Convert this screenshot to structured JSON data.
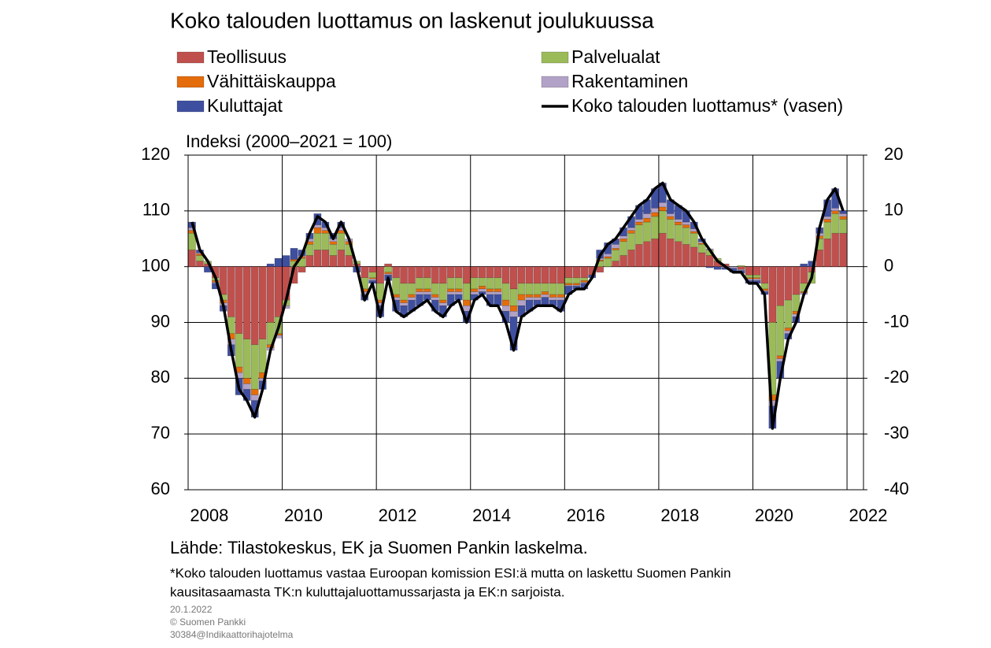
{
  "chart_data": {
    "type": "bar",
    "title": "Koko talouden luottamus on laskenut joulukuussa",
    "y_label": "Indeksi (2000–2021 = 100)",
    "source": "Lähde: Tilastokeskus, EK ja Suomen Pankin laskelma.",
    "footnote": [
      "*Koko talouden luottamus vastaa Euroopan komission ESI:ä mutta on laskettu Suomen Pankin",
      "kausitasaamasta TK:n kuluttajaluottamussarjasta ja EK:n sarjoista."
    ],
    "notes": [
      "20.1.2022",
      "© Suomen Pankki",
      "30384@Indikaattorihajotelma"
    ],
    "xlim": [
      2008,
      2022.35
    ],
    "xticks": [
      2008,
      2010,
      2012,
      2014,
      2016,
      2018,
      2020,
      2022
    ],
    "ylim": [
      60,
      120
    ],
    "yticks": [
      60,
      70,
      80,
      90,
      100,
      110,
      120
    ],
    "y2lim": [
      -40,
      20
    ],
    "y2ticks": [
      -40,
      -30,
      -20,
      -10,
      0,
      10,
      20
    ],
    "grid": true,
    "x": [
      2008.083,
      2008.25,
      2008.417,
      2008.583,
      2008.75,
      2008.917,
      2009.083,
      2009.25,
      2009.417,
      2009.583,
      2009.75,
      2009.917,
      2010.083,
      2010.25,
      2010.417,
      2010.583,
      2010.75,
      2010.917,
      2011.083,
      2011.25,
      2011.417,
      2011.583,
      2011.75,
      2011.917,
      2012.083,
      2012.25,
      2012.417,
      2012.583,
      2012.75,
      2012.917,
      2013.083,
      2013.25,
      2013.417,
      2013.583,
      2013.75,
      2013.917,
      2014.083,
      2014.25,
      2014.417,
      2014.583,
      2014.75,
      2014.917,
      2015.083,
      2015.25,
      2015.417,
      2015.583,
      2015.75,
      2015.917,
      2016.083,
      2016.25,
      2016.417,
      2016.583,
      2016.75,
      2016.917,
      2017.083,
      2017.25,
      2017.417,
      2017.583,
      2017.75,
      2017.917,
      2018.083,
      2018.25,
      2018.417,
      2018.583,
      2018.75,
      2018.917,
      2019.083,
      2019.25,
      2019.417,
      2019.583,
      2019.75,
      2019.917,
      2020.083,
      2020.25,
      2020.417,
      2020.583,
      2020.75,
      2020.917,
      2021.083,
      2021.25,
      2021.417,
      2021.583,
      2021.75,
      2021.917
    ],
    "series": [
      {
        "name": "Teollisuus",
        "type": "bar",
        "axis": "y2",
        "color": "#c0504d",
        "values": [
          3,
          1,
          0.5,
          -2,
          -5,
          -9,
          -12,
          -13,
          -14,
          -13,
          -10,
          -9,
          -6,
          -3,
          -1,
          2,
          3,
          3,
          2,
          3,
          2,
          0.5,
          -2,
          -1,
          -3,
          0.5,
          -2,
          -3,
          -3,
          -2,
          -2,
          -3,
          -3,
          -2,
          -2,
          -3,
          -2,
          -2,
          -2,
          -2,
          -3,
          -4,
          -3,
          -3,
          -3,
          -3,
          -3,
          -3,
          -2,
          -2,
          -2,
          -1.5,
          -1,
          0,
          1,
          2,
          3,
          4,
          4.5,
          5,
          6,
          5,
          4.5,
          4,
          3.5,
          2.5,
          2,
          1,
          0.5,
          0,
          -0.5,
          -1.5,
          -1.5,
          -3,
          -10,
          -7,
          -6,
          -5,
          -3,
          -1,
          3,
          5,
          6,
          6
        ]
      },
      {
        "name": "Palvelualat",
        "type": "bar",
        "axis": "y2",
        "color": "#9bbb59",
        "values": [
          3,
          1,
          0.5,
          -0.5,
          -1,
          -3,
          -6,
          -7,
          -8,
          -6,
          -4,
          -3,
          -1,
          1,
          1.5,
          2,
          3,
          3,
          2,
          3,
          2,
          0.5,
          -2,
          -1,
          -3,
          -1,
          -3,
          -3,
          -2,
          -2,
          -2,
          -2,
          -3,
          -2,
          -2,
          -3,
          -2,
          -1.5,
          -2,
          -2,
          -3,
          -3,
          -2,
          -2,
          -2,
          -1.5,
          -2,
          -2,
          -1,
          -1,
          -0.5,
          0,
          1,
          1.5,
          2,
          2.5,
          3,
          3.5,
          3.5,
          4,
          4,
          3.5,
          3,
          3,
          2.5,
          1.5,
          1,
          0.5,
          0,
          0,
          0.2,
          -0.5,
          -0.5,
          -1,
          -13,
          -9,
          -5,
          -3,
          -1.5,
          -2,
          2,
          3,
          3.5,
          2.5
        ]
      },
      {
        "name": "Vähittäiskauppa",
        "type": "bar",
        "axis": "y2",
        "color": "#e46c0a",
        "values": [
          0.5,
          0.3,
          0,
          -0.3,
          -0.5,
          -1,
          -1,
          -1,
          -1,
          -1,
          -0.5,
          -0.3,
          0,
          0.3,
          0.3,
          0.5,
          1,
          0.5,
          0.5,
          0.5,
          0.5,
          0,
          -0.5,
          -0.2,
          -0.5,
          -0.3,
          -0.5,
          -0.5,
          -0.5,
          -0.5,
          -0.5,
          -0.5,
          -0.5,
          -0.5,
          -0.5,
          -1,
          -0.5,
          -0.5,
          -0.5,
          -0.5,
          -1,
          -1,
          -1,
          -0.5,
          -0.5,
          -0.5,
          -0.5,
          -0.5,
          -0.3,
          -0.3,
          -0.3,
          0,
          0.2,
          0.3,
          0.3,
          0.5,
          0.5,
          0.5,
          0.7,
          0.7,
          0.7,
          0.5,
          0.5,
          0.5,
          0.3,
          0.2,
          0,
          0,
          0,
          0,
          0,
          -0.2,
          -0.2,
          -0.3,
          -1,
          -0.5,
          -0.5,
          -0.5,
          -0.2,
          0,
          0.5,
          0.5,
          0.5,
          0.5
        ]
      },
      {
        "name": "Rakentaminen",
        "type": "bar",
        "axis": "y2",
        "color": "#b3a2c7",
        "values": [
          0.5,
          0.2,
          0,
          -0.2,
          -0.5,
          -1,
          -1,
          -1,
          -1,
          -0.5,
          -0.5,
          -0.5,
          -0.5,
          0,
          0.2,
          0.5,
          0.5,
          0.5,
          0.5,
          0.5,
          0.5,
          0,
          -0.5,
          -0.3,
          -0.5,
          -0.2,
          -0.5,
          -0.5,
          -0.5,
          -0.5,
          -0.5,
          -0.5,
          -0.5,
          -0.5,
          -0.5,
          -1,
          -0.5,
          -0.5,
          -0.5,
          -0.5,
          -1,
          -1,
          -1,
          -0.5,
          -0.5,
          -0.5,
          -0.5,
          -0.5,
          -0.2,
          -0.2,
          -0.2,
          0,
          0.3,
          0.5,
          0.7,
          0.5,
          0.5,
          0.5,
          0.8,
          0.8,
          0.8,
          0.5,
          0.5,
          0.5,
          0.5,
          0.3,
          0.2,
          0,
          -0.2,
          -0.3,
          -0.2,
          -0.3,
          -0.3,
          -0.2,
          -1,
          -0.5,
          -0.5,
          -0.5,
          -0.3,
          0,
          0.5,
          0.5,
          0.5,
          0.5
        ]
      },
      {
        "name": "Kuluttajat",
        "type": "bar",
        "axis": "y2",
        "color": "#3f4fa0",
        "values": [
          1,
          0.5,
          -1,
          -1,
          -1,
          -2,
          -3,
          -2,
          -3,
          -1.5,
          0.5,
          1.5,
          2,
          2,
          1,
          1,
          2,
          1,
          1,
          1,
          0,
          -1,
          -1,
          -0.5,
          -2,
          -1,
          -2,
          -2,
          -2,
          -2,
          -1,
          -2,
          -2,
          -2,
          -1,
          -2,
          -1,
          -0.5,
          -2,
          -2,
          -2,
          -6,
          -2,
          -2,
          -1,
          -1.5,
          -1,
          -2,
          -1.5,
          -0.5,
          -1,
          -0.5,
          1.5,
          2,
          1,
          1.5,
          2,
          2.5,
          2.5,
          3.5,
          3.5,
          2.5,
          2.5,
          2,
          1.2,
          0.5,
          -0.2,
          -0.5,
          -0.3,
          -0.7,
          -0.5,
          -0.5,
          -0.5,
          -0.5,
          -4,
          -3,
          -1,
          -1,
          0.5,
          1,
          1,
          3,
          3.5,
          0.5
        ]
      },
      {
        "name": "Koko talouden luottamus* (vasen)",
        "type": "line",
        "axis": "y",
        "color": "#000000",
        "values": [
          108,
          103,
          101,
          98,
          93,
          85,
          78,
          76,
          73,
          78,
          85,
          89,
          94,
          100,
          102,
          106,
          109,
          108,
          105,
          108,
          105,
          100,
          94,
          97,
          91,
          98,
          92,
          91,
          92,
          93,
          94,
          92,
          91,
          93,
          94,
          90,
          94,
          95,
          93,
          93,
          90,
          85,
          91,
          92,
          93,
          93,
          93,
          92,
          95,
          96,
          96,
          98,
          102,
          104,
          105,
          107,
          109,
          111,
          112,
          114,
          115,
          112,
          111,
          110,
          108,
          105,
          103,
          101,
          100,
          99,
          99,
          97,
          97,
          95,
          71,
          80,
          87,
          90,
          95,
          98,
          107,
          112,
          114,
          110
        ]
      }
    ]
  }
}
